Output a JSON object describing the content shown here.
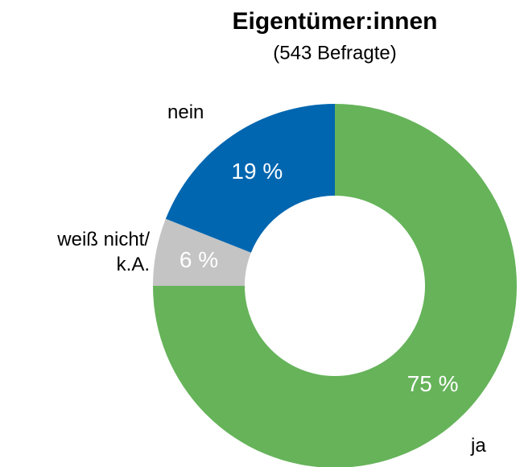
{
  "chart_data": {
    "type": "donut",
    "title": "Eigentümer:innen",
    "subtitle": "(543 Befragte)",
    "categories": [
      "ja",
      "weiß nicht/\nk.A.",
      "nein"
    ],
    "values": [
      75,
      6,
      19
    ],
    "value_labels": [
      "75 %",
      "6 %",
      "19 %"
    ],
    "colors": [
      "#66b35a",
      "#c4c4c4",
      "#0066b0"
    ]
  }
}
